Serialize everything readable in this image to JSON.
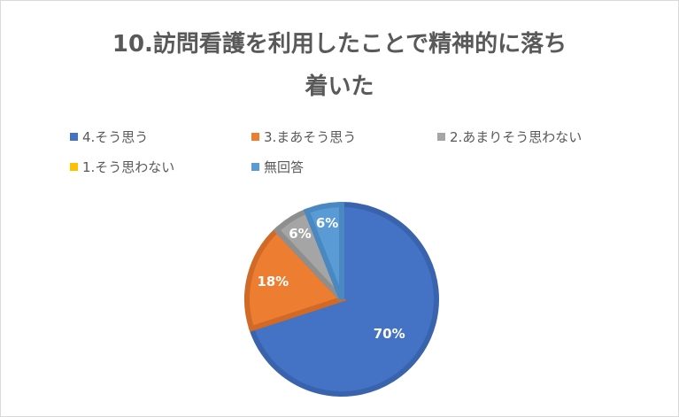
{
  "chart_data": {
    "type": "pie",
    "title_lines": [
      "10.訪問看護を利用したことで精神的に落ち",
      "着いた"
    ],
    "categories": [
      "4.そう思う",
      "3.まあそう思う",
      "2.あまりそう思わない",
      "1.そう思わない",
      "無回答"
    ],
    "values": [
      70,
      18,
      6,
      0,
      6
    ],
    "data_labels": [
      "70%",
      "18%",
      "6%",
      "",
      "6%"
    ],
    "colors": [
      "#4472C4",
      "#ED7D31",
      "#A5A5A5",
      "#FFC000",
      "#5B9BD5"
    ],
    "border_colors": [
      "#3A63AD",
      "#D06A26",
      "#8E8E8E",
      "#E0A800",
      "#4A88C2"
    ],
    "legend_position": "top",
    "start_angle": "12 o'clock, clockwise"
  }
}
